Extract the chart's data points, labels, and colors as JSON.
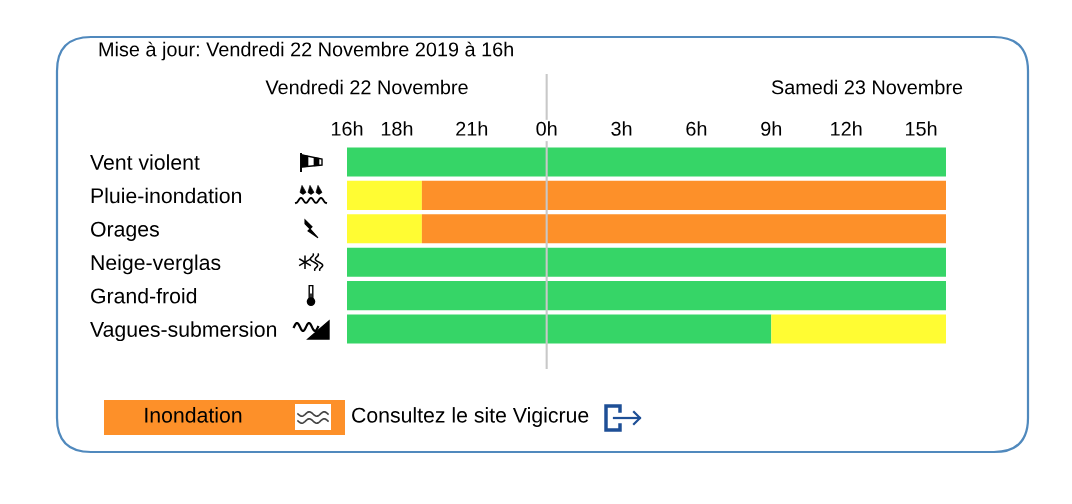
{
  "chart_data": [
    {
      "type": "bar",
      "orientation": "horizontal",
      "title": "Vendredi 22 Novembre",
      "categories": [
        "Vent violent",
        "Pluie-inondation",
        "Orages",
        "Neige-verglas",
        "Grand-froid",
        "Vagues-submersion"
      ],
      "series": [
        {
          "base": [
            16,
            16,
            16,
            16,
            16,
            16
          ],
          "values": [
            8,
            3,
            3,
            8,
            8,
            8
          ],
          "colors": [
            "#36d567",
            "#fffc33",
            "#fffc33",
            "#36d567",
            "#36d567",
            "#36d567"
          ]
        },
        {
          "base": [
            null,
            19,
            19,
            null,
            null,
            null
          ],
          "values": [
            null,
            5,
            5,
            null,
            null,
            null
          ],
          "colors": [
            null,
            "#fd9029",
            "#fd9029",
            null,
            null,
            null
          ]
        }
      ],
      "xlim": [
        16,
        24
      ],
      "xticks": [
        {
          "value": 16,
          "label": "16h"
        },
        {
          "value": 18,
          "label": "18h"
        },
        {
          "value": 21,
          "label": "21h"
        }
      ],
      "annotations": [
        "Mise à jour: Vendredi 22 Novembre 2019 à 16h",
        "Inondation",
        "Consultez le site Vigicrue"
      ]
    },
    {
      "type": "bar",
      "orientation": "horizontal",
      "stacked": true,
      "title": "Samedi 23 Novembre",
      "series": [
        {
          "values": [
            16,
            16,
            16,
            16,
            16,
            9
          ],
          "colors": [
            "#36d567",
            "#fd9029",
            "#fd9029",
            "#36d567",
            "#36d567",
            "#36d567"
          ]
        },
        {
          "values": [
            null,
            null,
            null,
            null,
            null,
            7
          ],
          "colors": [
            null,
            null,
            null,
            null,
            null,
            "#fffc33"
          ]
        }
      ],
      "xlim": [
        0,
        16
      ],
      "xticks": [
        {
          "value": 0,
          "label": "0h"
        },
        {
          "value": 3,
          "label": "3h"
        },
        {
          "value": 6,
          "label": "6h"
        },
        {
          "value": 9,
          "label": "9h"
        },
        {
          "value": 12,
          "label": "12h"
        },
        {
          "value": 15,
          "label": "15h"
        }
      ],
      "tick_labels": "x"
    }
  ]
}
